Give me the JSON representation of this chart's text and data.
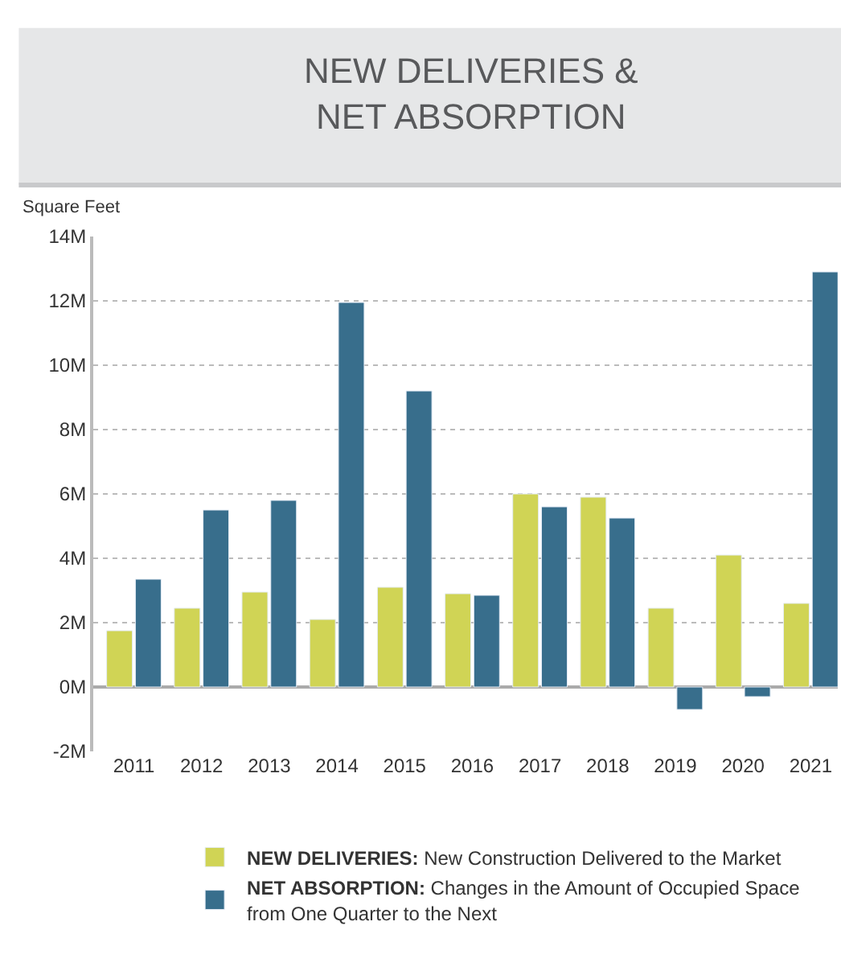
{
  "chart_data": {
    "type": "bar",
    "title": "NEW DELIVERIES &\nNET ABSORPTION",
    "ylabel": "Square Feet",
    "categories": [
      "2011",
      "2012",
      "2013",
      "2014",
      "2015",
      "2016",
      "2017",
      "2018",
      "2019",
      "2020",
      "2021"
    ],
    "series": [
      {
        "name": "NEW DELIVERIES: New Construction Delivered to the Market",
        "color": "#d0d455",
        "values": [
          1750000,
          2450000,
          2950000,
          2100000,
          3100000,
          2900000,
          6000000,
          5900000,
          2450000,
          4100000,
          2600000
        ]
      },
      {
        "name": "NET ABSORPTION: Changes in the Amount of Occupied Space from One Quarter to the Next",
        "color": "#386e8c",
        "values": [
          3350000,
          5500000,
          5800000,
          11950000,
          9200000,
          2850000,
          5600000,
          5250000,
          -700000,
          -300000,
          12900000
        ]
      }
    ],
    "ylim": [
      -2000000,
      14000000
    ],
    "yticks": [
      {
        "value": -2000000,
        "label": "-2M"
      },
      {
        "value": 0,
        "label": "0M"
      },
      {
        "value": 2000000,
        "label": "2M"
      },
      {
        "value": 4000000,
        "label": "4M"
      },
      {
        "value": 6000000,
        "label": "6M"
      },
      {
        "value": 8000000,
        "label": "8M"
      },
      {
        "value": 10000000,
        "label": "10M"
      },
      {
        "value": 12000000,
        "label": "12M"
      },
      {
        "value": 14000000,
        "label": "14M"
      }
    ],
    "grid": "y",
    "legend": "bottom"
  }
}
